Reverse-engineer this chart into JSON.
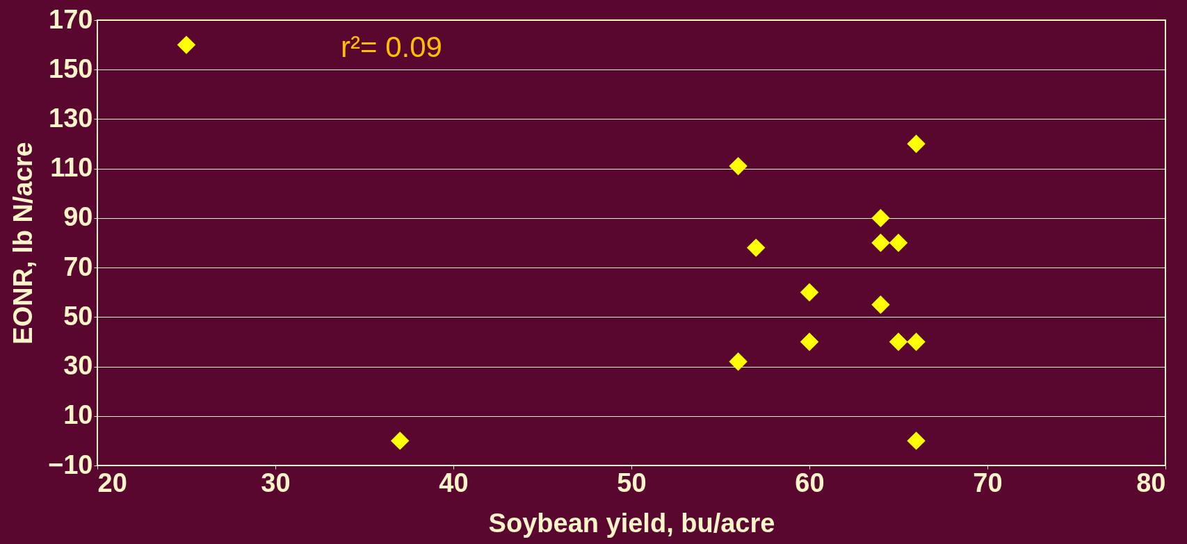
{
  "chart_data": {
    "type": "scatter",
    "xlabel": "Soybean yield, bu/acre",
    "ylabel": "EONR, lb N/acre",
    "annotations": [
      "r²= 0.09"
    ],
    "x": [
      25,
      37,
      56,
      66,
      64,
      57,
      64,
      65,
      60,
      64,
      60,
      65,
      66,
      56,
      66
    ],
    "series": [
      {
        "color": "#ffff00",
        "values": [
          160,
          0,
          111,
          120,
          90,
          78,
          80,
          80,
          60,
          55,
          40,
          40,
          40,
          32,
          0
        ]
      }
    ],
    "xlim": [
      20,
      80
    ],
    "ylim": [
      -10,
      170
    ],
    "xticks": [
      20,
      30,
      40,
      50,
      60,
      70,
      80
    ],
    "yticks": [
      -10,
      10,
      30,
      50,
      70,
      90,
      110,
      130,
      150,
      170
    ],
    "grid": "y",
    "legend": false,
    "marker": "diamond"
  }
}
